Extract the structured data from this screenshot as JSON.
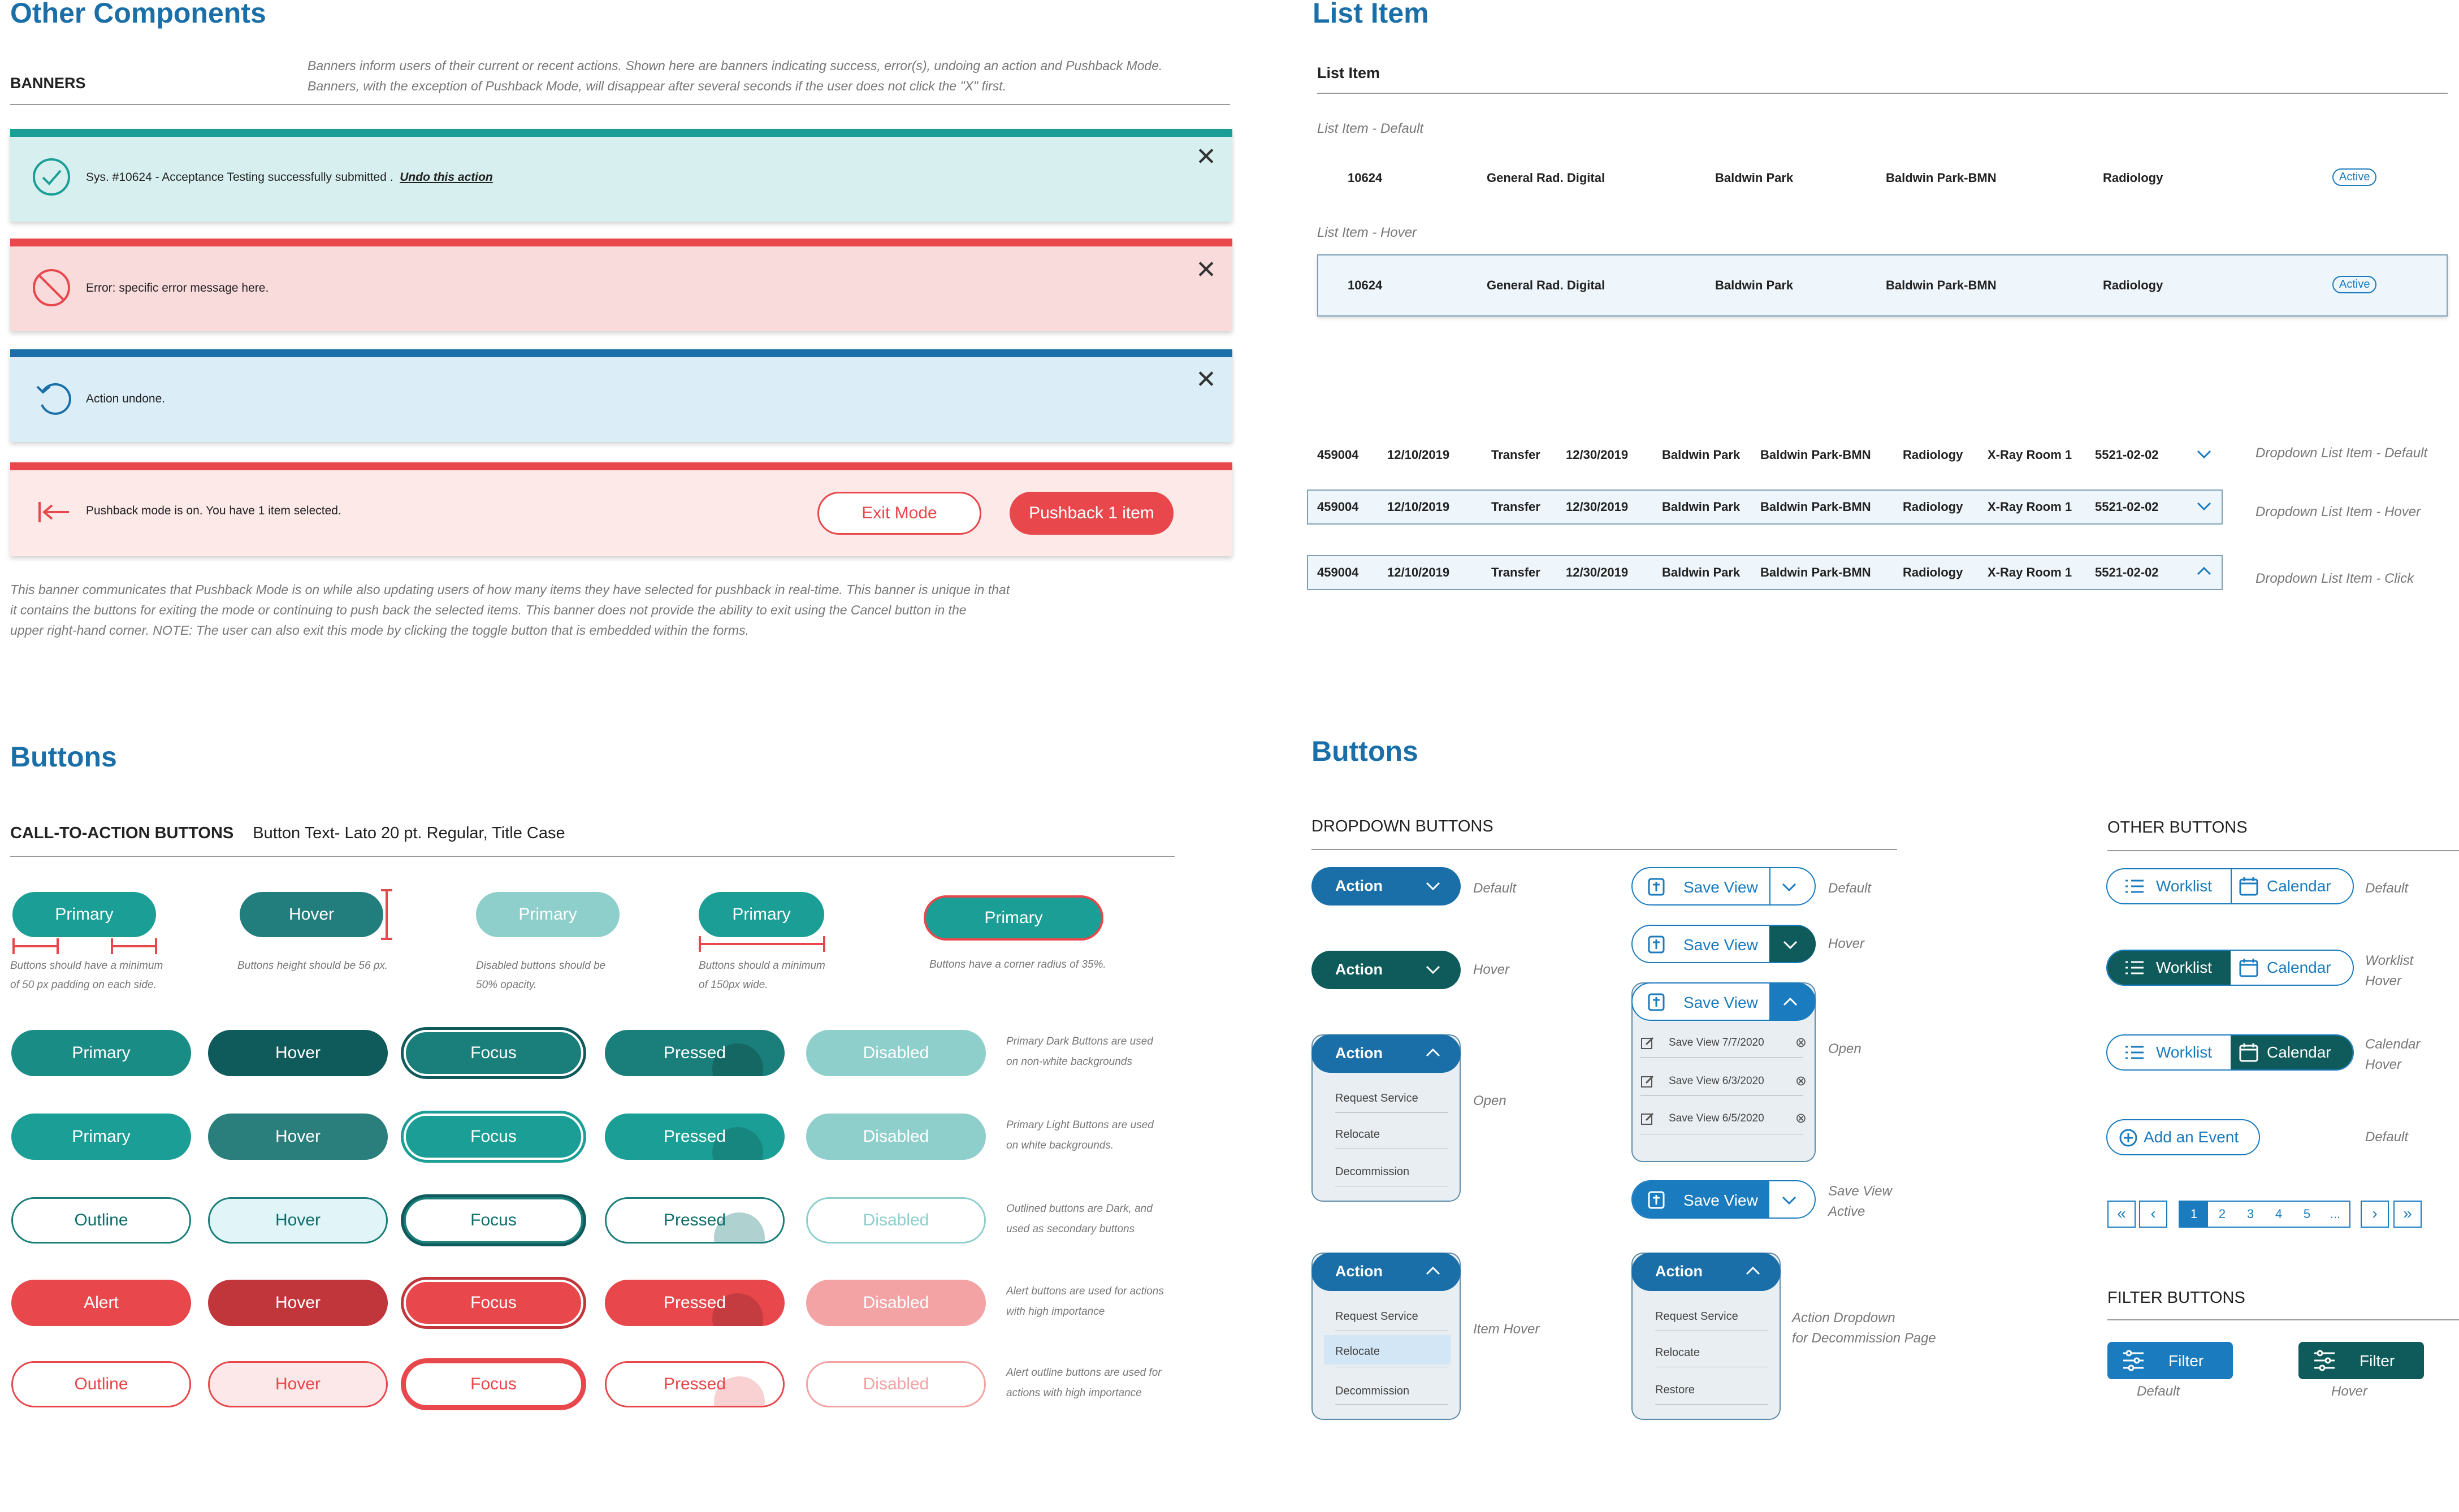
{
  "other_components": {
    "title": "Other Components",
    "banners_label": "BANNERS",
    "banners_desc_1": "Banners inform users of their current or recent actions. Shown here are banners indicating success, error(s), undoing an action and Pushback Mode.",
    "banners_desc_2": "Banners, with the exception of Pushback Mode, will disappear after several seconds if the user does not click the \"X\" first.",
    "success_msg": "Sys. #10624 - Acceptance Testing successfully submitted .",
    "undo_link": "Undo this action",
    "error_msg": "Error: specific error message here.",
    "undone_msg": "Action undone.",
    "pushback_msg": "Pushback mode is on. You have 1 item selected.",
    "exit_mode": "Exit Mode",
    "pushback_btn": "Pushback 1 item",
    "pushback_note_1": "This banner communicates that Pushback Mode is on while also updating users of how many items they have selected for pushback in real-time. This banner is unique in  that",
    "pushback_note_2": "it contains the buttons for exiting the mode or continuing to  push back the selected items. This banner does not provide the ability to exit using the Cancel button in the",
    "pushback_note_3": "upper right-hand corner. NOTE: The user can also exit this mode by clicking the toggle button that is embedded within the forms.",
    "colors": {
      "teal": "#1a9e96",
      "dark_teal": "#0f6e6a",
      "red": "#e8474c",
      "blue": "#1a7bbf"
    }
  },
  "list_item": {
    "title": "List Item",
    "sub": "List Item",
    "default_label": "List Item - Default",
    "hover_label": "List Item - Hover",
    "row": {
      "id": "10624",
      "type": "General Rad. Digital",
      "loc": "Baldwin Park",
      "dept": "Baldwin Park-BMN",
      "spec": "Radiology",
      "status": "Active"
    },
    "dd_row": {
      "c1": "459004",
      "c2": "12/10/2019",
      "c3": "Transfer",
      "c4": "12/30/2019",
      "c5": "Baldwin Park",
      "c6": "Baldwin Park-BMN",
      "c7": "Radiology",
      "c8": "X-Ray Room 1",
      "c9": "5521-02-02"
    },
    "dd_default_label": "Dropdown List Item - Default",
    "dd_hover_label": "Dropdown List Item - Hover",
    "dd_click_label": "Dropdown List Item - Click"
  },
  "buttons_left": {
    "title": "Buttons",
    "cta_label": "CALL-TO-ACTION BUTTONS",
    "cta_desc": "Button Text- Lato 20 pt. Regular,  Title Case",
    "spec": {
      "b1": "Primary",
      "b2": "Hover",
      "b3": "Primary",
      "b4": "Primary",
      "b5": "Primary",
      "n1a": "Buttons should have a minimum",
      "n1b": "of 50 px padding on each side.",
      "n2": "Buttons height should be 56 px.",
      "n3a": "Disabled buttons should be",
      "n3b": "50% opacity.",
      "n4a": "Buttons should a minimum",
      "n4b": "of 150px wide.",
      "n5": "Buttons have a corner radius of 35%."
    },
    "rows": [
      {
        "labels": [
          "Primary",
          "Hover",
          "Focus",
          "Pressed",
          "Disabled"
        ],
        "note_1": "Primary Dark Buttons are used",
        "note_2": "on non-white backgrounds"
      },
      {
        "labels": [
          "Primary",
          "Hover",
          "Focus",
          "Pressed",
          "Disabled"
        ],
        "note_1": "Primary Light Buttons are used",
        "note_2": "on white backgrounds."
      },
      {
        "labels": [
          "Outline",
          "Hover",
          "Focus",
          "Pressed",
          "Disabled"
        ],
        "note_1": "Outlined buttons are Dark, and",
        "note_2": "used as secondary buttons"
      },
      {
        "labels": [
          "Alert",
          "Hover",
          "Focus",
          "Pressed",
          "Disabled"
        ],
        "note_1": "Alert buttons are used for actions",
        "note_2": "with high importance"
      },
      {
        "labels": [
          "Outline",
          "Hover",
          "Focus",
          "Pressed",
          "Disabled"
        ],
        "note_1": "Alert outline buttons are used for",
        "note_2": "actions with high importance"
      }
    ]
  },
  "buttons_right": {
    "title": "Buttons",
    "dropdown_label": "DROPDOWN BUTTONS",
    "action": "Action",
    "default": "Default",
    "hover": "Hover",
    "open": "Open",
    "item_hover": "Item Hover",
    "menu": [
      "Request Service",
      "Relocate",
      "Decommission"
    ],
    "menu_decom": [
      "Request Service",
      "Relocate",
      "Restore"
    ],
    "decom_label_1": "Action Dropdown",
    "decom_label_2": "for Decommission Page",
    "save_view": "Save View",
    "saved_views": [
      "Save View  7/7/2020",
      "Save View  6/3/2020",
      "Save View  6/5/2020"
    ],
    "sv_active_1": "Save View",
    "sv_active_2": "Active",
    "other_label": "OTHER BUTTONS",
    "worklist": "Worklist",
    "calendar": "Calendar",
    "worklist_hover_1": "Worklist",
    "worklist_hover_2": "Hover",
    "calendar_hover_1": "Calendar",
    "calendar_hover_2": "Hover",
    "add_event": "Add an Event",
    "pages": [
      "1",
      "2",
      "3",
      "4",
      "5",
      "..."
    ],
    "filter_label": "FILTER BUTTONS",
    "filter": "Filter"
  }
}
